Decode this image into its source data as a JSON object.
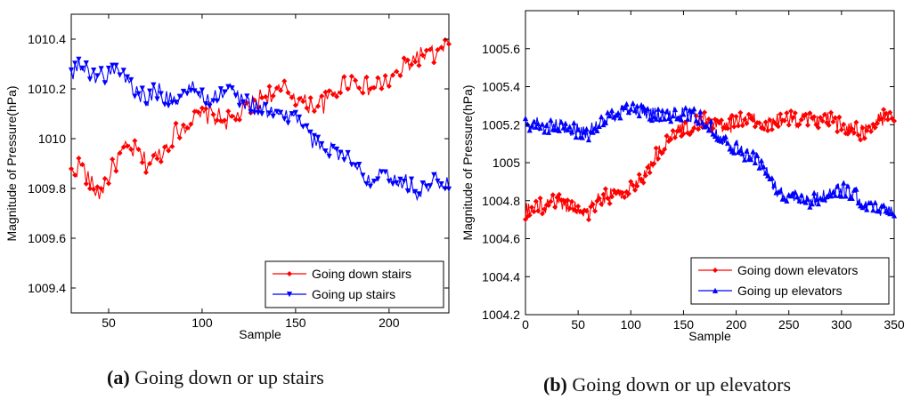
{
  "chart_data": [
    {
      "type": "line",
      "ylabel": "Magnitude of Pressure(hPa)",
      "xlabel": "Sample",
      "xlim": [
        30,
        232
      ],
      "ylim": [
        1009.3,
        1010.5
      ],
      "xticks": [
        "50",
        "100",
        "150",
        "200"
      ],
      "yticks": [
        "1009.4",
        "1009.6",
        "1009.8",
        "1010",
        "1010.2",
        "1010.4"
      ],
      "legend_position": "bottom-right",
      "caption": {
        "label": "(a)",
        "text": " Going down or up stairs"
      },
      "series": [
        {
          "name": "Going down stairs",
          "color": "#ff0000",
          "marker": "diamond",
          "x_start": 30,
          "x_end": 232,
          "anchors": [
            [
              30,
              1009.86
            ],
            [
              35,
              1009.9
            ],
            [
              40,
              1009.82
            ],
            [
              45,
              1009.78
            ],
            [
              50,
              1009.85
            ],
            [
              55,
              1009.92
            ],
            [
              60,
              1009.96
            ],
            [
              65,
              1009.95
            ],
            [
              70,
              1009.9
            ],
            [
              75,
              1009.92
            ],
            [
              80,
              1009.96
            ],
            [
              85,
              1010.02
            ],
            [
              90,
              1010.05
            ],
            [
              95,
              1010.08
            ],
            [
              100,
              1010.09
            ],
            [
              105,
              1010.1
            ],
            [
              110,
              1010.08
            ],
            [
              115,
              1010.07
            ],
            [
              120,
              1010.1
            ],
            [
              125,
              1010.12
            ],
            [
              130,
              1010.16
            ],
            [
              135,
              1010.18
            ],
            [
              140,
              1010.18
            ],
            [
              145,
              1010.2
            ],
            [
              150,
              1010.17
            ],
            [
              155,
              1010.14
            ],
            [
              160,
              1010.14
            ],
            [
              165,
              1010.14
            ],
            [
              170,
              1010.18
            ],
            [
              175,
              1010.22
            ],
            [
              180,
              1010.24
            ],
            [
              185,
              1010.22
            ],
            [
              190,
              1010.2
            ],
            [
              195,
              1010.22
            ],
            [
              200,
              1010.23
            ],
            [
              205,
              1010.26
            ],
            [
              210,
              1010.3
            ],
            [
              215,
              1010.33
            ],
            [
              220,
              1010.34
            ],
            [
              225,
              1010.33
            ],
            [
              232,
              1010.38
            ]
          ],
          "noise": 0.04
        },
        {
          "name": "Going up stairs",
          "color": "#0000ff",
          "marker": "triangle-down",
          "x_start": 30,
          "x_end": 232,
          "anchors": [
            [
              30,
              1010.27
            ],
            [
              35,
              1010.29
            ],
            [
              40,
              1010.27
            ],
            [
              45,
              1010.25
            ],
            [
              50,
              1010.26
            ],
            [
              55,
              1010.28
            ],
            [
              60,
              1010.24
            ],
            [
              65,
              1010.18
            ],
            [
              70,
              1010.16
            ],
            [
              75,
              1010.2
            ],
            [
              80,
              1010.17
            ],
            [
              85,
              1010.16
            ],
            [
              90,
              1010.18
            ],
            [
              95,
              1010.2
            ],
            [
              100,
              1010.17
            ],
            [
              105,
              1010.16
            ],
            [
              110,
              1010.18
            ],
            [
              115,
              1010.2
            ],
            [
              120,
              1010.16
            ],
            [
              125,
              1010.14
            ],
            [
              130,
              1010.13
            ],
            [
              135,
              1010.11
            ],
            [
              140,
              1010.1
            ],
            [
              145,
              1010.08
            ],
            [
              150,
              1010.1
            ],
            [
              155,
              1010.04
            ],
            [
              160,
              1009.98
            ],
            [
              165,
              1009.97
            ],
            [
              170,
              1009.96
            ],
            [
              175,
              1009.94
            ],
            [
              180,
              1009.9
            ],
            [
              185,
              1009.86
            ],
            [
              190,
              1009.84
            ],
            [
              195,
              1009.88
            ],
            [
              200,
              1009.86
            ],
            [
              205,
              1009.84
            ],
            [
              210,
              1009.82
            ],
            [
              215,
              1009.79
            ],
            [
              220,
              1009.8
            ],
            [
              225,
              1009.84
            ],
            [
              232,
              1009.83
            ]
          ],
          "noise": 0.035
        }
      ]
    },
    {
      "type": "line",
      "ylabel": "Magnitude of Pressure(hPa)",
      "xlabel": "Sample",
      "xlim": [
        0,
        350
      ],
      "ylim": [
        1004.2,
        1005.8
      ],
      "xticks": [
        "0",
        "50",
        "100",
        "150",
        "200",
        "250",
        "300",
        "350"
      ],
      "yticks": [
        "1004.2",
        "1004.4",
        "1004.6",
        "1004.8",
        "1005",
        "1005.2",
        "1005.4",
        "1005.6"
      ],
      "legend_position": "bottom-right",
      "caption": {
        "label": "(b)",
        "text": " Going down or up elevators"
      },
      "series": [
        {
          "name": "Going down elevators",
          "color": "#ff0000",
          "marker": "diamond",
          "x_start": 0,
          "x_end": 350,
          "anchors": [
            [
              0,
              1004.74
            ],
            [
              10,
              1004.76
            ],
            [
              20,
              1004.78
            ],
            [
              30,
              1004.8
            ],
            [
              40,
              1004.78
            ],
            [
              50,
              1004.75
            ],
            [
              60,
              1004.74
            ],
            [
              70,
              1004.8
            ],
            [
              80,
              1004.83
            ],
            [
              90,
              1004.82
            ],
            [
              100,
              1004.86
            ],
            [
              110,
              1004.92
            ],
            [
              120,
              1005.0
            ],
            [
              130,
              1005.08
            ],
            [
              140,
              1005.14
            ],
            [
              150,
              1005.18
            ],
            [
              160,
              1005.2
            ],
            [
              170,
              1005.22
            ],
            [
              180,
              1005.2
            ],
            [
              190,
              1005.18
            ],
            [
              200,
              1005.22
            ],
            [
              210,
              1005.23
            ],
            [
              220,
              1005.22
            ],
            [
              230,
              1005.2
            ],
            [
              240,
              1005.22
            ],
            [
              250,
              1005.23
            ],
            [
              260,
              1005.22
            ],
            [
              270,
              1005.22
            ],
            [
              280,
              1005.23
            ],
            [
              290,
              1005.22
            ],
            [
              300,
              1005.2
            ],
            [
              310,
              1005.18
            ],
            [
              320,
              1005.16
            ],
            [
              330,
              1005.2
            ],
            [
              340,
              1005.24
            ],
            [
              350,
              1005.26
            ]
          ],
          "noise": 0.045
        },
        {
          "name": "Going up elevators",
          "color": "#0000ff",
          "marker": "triangle-up",
          "x_start": 0,
          "x_end": 350,
          "anchors": [
            [
              0,
              1005.2
            ],
            [
              10,
              1005.21
            ],
            [
              20,
              1005.18
            ],
            [
              30,
              1005.19
            ],
            [
              40,
              1005.18
            ],
            [
              50,
              1005.17
            ],
            [
              60,
              1005.16
            ],
            [
              70,
              1005.2
            ],
            [
              80,
              1005.24
            ],
            [
              90,
              1005.27
            ],
            [
              100,
              1005.28
            ],
            [
              110,
              1005.27
            ],
            [
              120,
              1005.26
            ],
            [
              130,
              1005.24
            ],
            [
              140,
              1005.25
            ],
            [
              150,
              1005.26
            ],
            [
              160,
              1005.25
            ],
            [
              170,
              1005.22
            ],
            [
              180,
              1005.16
            ],
            [
              190,
              1005.12
            ],
            [
              200,
              1005.08
            ],
            [
              210,
              1005.04
            ],
            [
              220,
              1005.02
            ],
            [
              230,
              1004.94
            ],
            [
              240,
              1004.85
            ],
            [
              250,
              1004.82
            ],
            [
              260,
              1004.82
            ],
            [
              270,
              1004.8
            ],
            [
              280,
              1004.82
            ],
            [
              290,
              1004.84
            ],
            [
              300,
              1004.86
            ],
            [
              310,
              1004.84
            ],
            [
              320,
              1004.8
            ],
            [
              330,
              1004.76
            ],
            [
              340,
              1004.75
            ],
            [
              350,
              1004.76
            ]
          ],
          "noise": 0.04
        }
      ]
    }
  ]
}
